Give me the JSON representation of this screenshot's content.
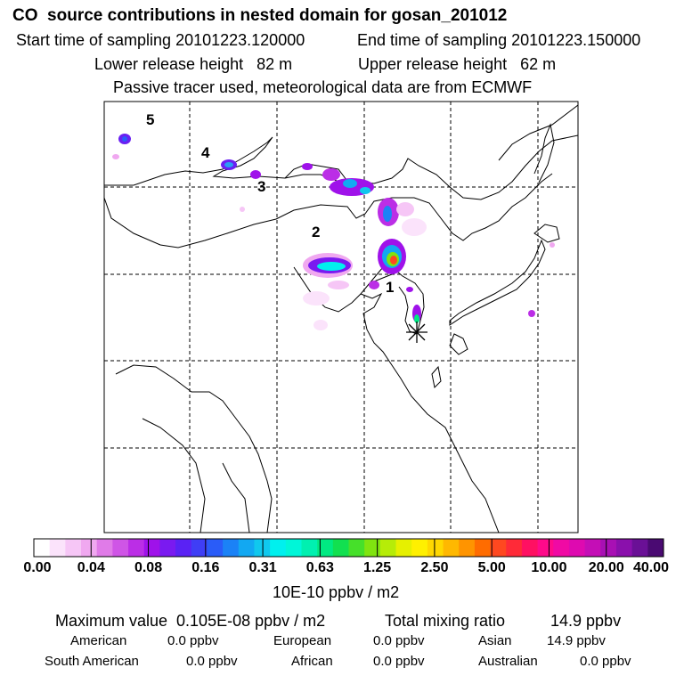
{
  "header": {
    "title": "CO  source contributions in nested domain for gosan_201012",
    "start_time": "Start time of sampling 20101223.120000",
    "end_time": "End time of sampling 20101223.150000",
    "lower_height": "Lower release height   82 m",
    "upper_height": "Upper release height   62 m",
    "tracer_note": "Passive tracer used, meteorological data are from ECMWF"
  },
  "map": {
    "labels": [
      "1",
      "2",
      "3",
      "4",
      "5"
    ],
    "receptor_marker": "asterisk-icon"
  },
  "colorbar": {
    "colors": [
      "#ffffff",
      "#fbe3fb",
      "#f6c6f6",
      "#f0a8f0",
      "#e07be8",
      "#cf55e6",
      "#bb2ee6",
      "#9f12ea",
      "#7a1af0",
      "#5a22f4",
      "#3f3ef6",
      "#2a5cf8",
      "#1b82f6",
      "#12a8f2",
      "#10c8ee",
      "#00f0ee",
      "#00f6d8",
      "#00f0b0",
      "#00ea82",
      "#12e050",
      "#46e02a",
      "#80e410",
      "#b6ec08",
      "#e6f000",
      "#fff000",
      "#ffd800",
      "#ffb800",
      "#ff9400",
      "#ff6c00",
      "#ff4820",
      "#ff2a38",
      "#ff1062",
      "#ff0a8a",
      "#f00aa4",
      "#de0ab0",
      "#c40eb6",
      "#a810b4",
      "#8a10ac",
      "#6a1096",
      "#4a0a72"
    ],
    "tick_labels": [
      "0.00",
      "0.04",
      "0.08",
      "0.16",
      "0.31",
      "0.63",
      "1.25",
      "2.50",
      "5.00",
      "10.00",
      "20.00",
      "40.00"
    ],
    "unit": "10E-10 ppbv / m2"
  },
  "stats": {
    "max_value": "Maximum value  0.105E-08 ppbv / m2",
    "total_label": "Total mixing ratio",
    "total_value": "14.9 ppbv",
    "american_label": "American",
    "american_value": "0.0 ppbv",
    "european_label": "European",
    "european_value": "0.0 ppbv",
    "asian_label": "Asian",
    "asian_value": "14.9 ppbv",
    "south_american_label": "South American",
    "south_american_value": "0.0 ppbv",
    "african_label": "African",
    "african_value": "0.0 ppbv",
    "australian_label": "Australian",
    "australian_value": "0.0 ppbv"
  }
}
